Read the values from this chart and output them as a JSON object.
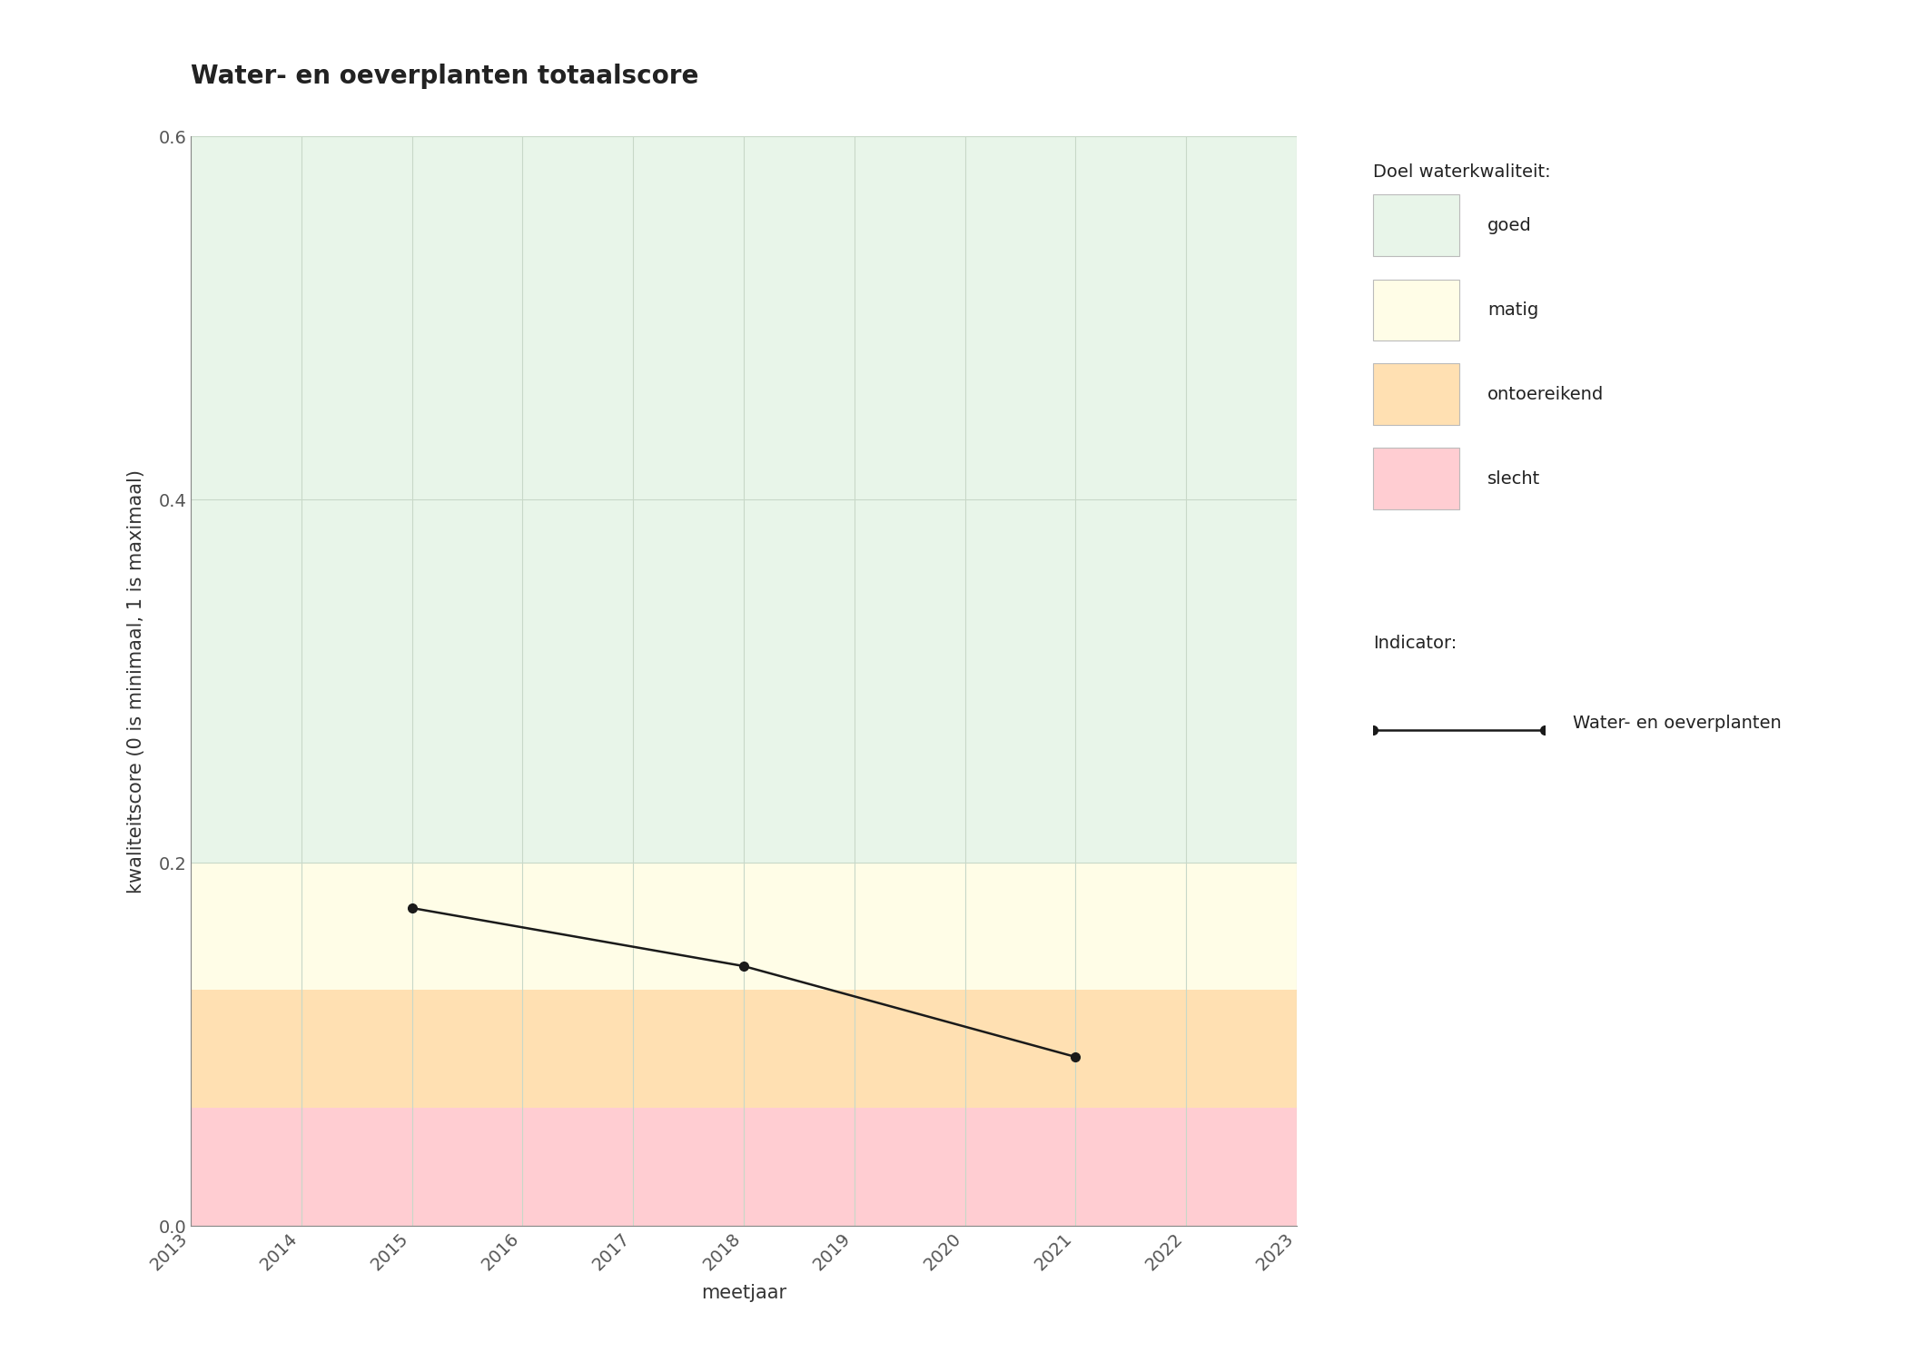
{
  "title": "Water- en oeverplanten totaalscore",
  "xlabel": "meetjaar",
  "ylabel": "kwaliteitscore (0 is minimaal, 1 is maximaal)",
  "xlim": [
    2013,
    2023
  ],
  "ylim": [
    0.0,
    0.6
  ],
  "xticks": [
    2013,
    2014,
    2015,
    2016,
    2017,
    2018,
    2019,
    2020,
    2021,
    2022,
    2023
  ],
  "yticks": [
    0.0,
    0.2,
    0.4,
    0.6
  ],
  "data_x": [
    2015,
    2018,
    2021
  ],
  "data_y": [
    0.175,
    0.143,
    0.093
  ],
  "bg_bands": [
    {
      "ymin": 0.0,
      "ymax": 0.065,
      "color": "#ffcdd2",
      "label": "slecht"
    },
    {
      "ymin": 0.065,
      "ymax": 0.13,
      "color": "#ffe0b2",
      "label": "ontoereikend"
    },
    {
      "ymin": 0.13,
      "ymax": 0.2,
      "color": "#fffde7",
      "label": "matig"
    },
    {
      "ymin": 0.2,
      "ymax": 0.6,
      "color": "#e8f5e9",
      "label": "goed"
    }
  ],
  "legend_title_1": "Doel waterkwaliteit:",
  "legend_title_2": "Indicator:",
  "legend_colors": [
    "#e8f5e9",
    "#fffde7",
    "#ffe0b2",
    "#ffcdd2"
  ],
  "legend_labels": [
    "goed",
    "matig",
    "ontoereikend",
    "slecht"
  ],
  "indicator_label": "Water- en oeverplanten",
  "line_color": "#1a1a1a",
  "marker": "o",
  "marker_size": 7,
  "grid_color": "#c8d8c8",
  "bg_color": "#ffffff",
  "title_fontsize": 20,
  "label_fontsize": 15,
  "tick_fontsize": 14,
  "legend_fontsize": 14
}
